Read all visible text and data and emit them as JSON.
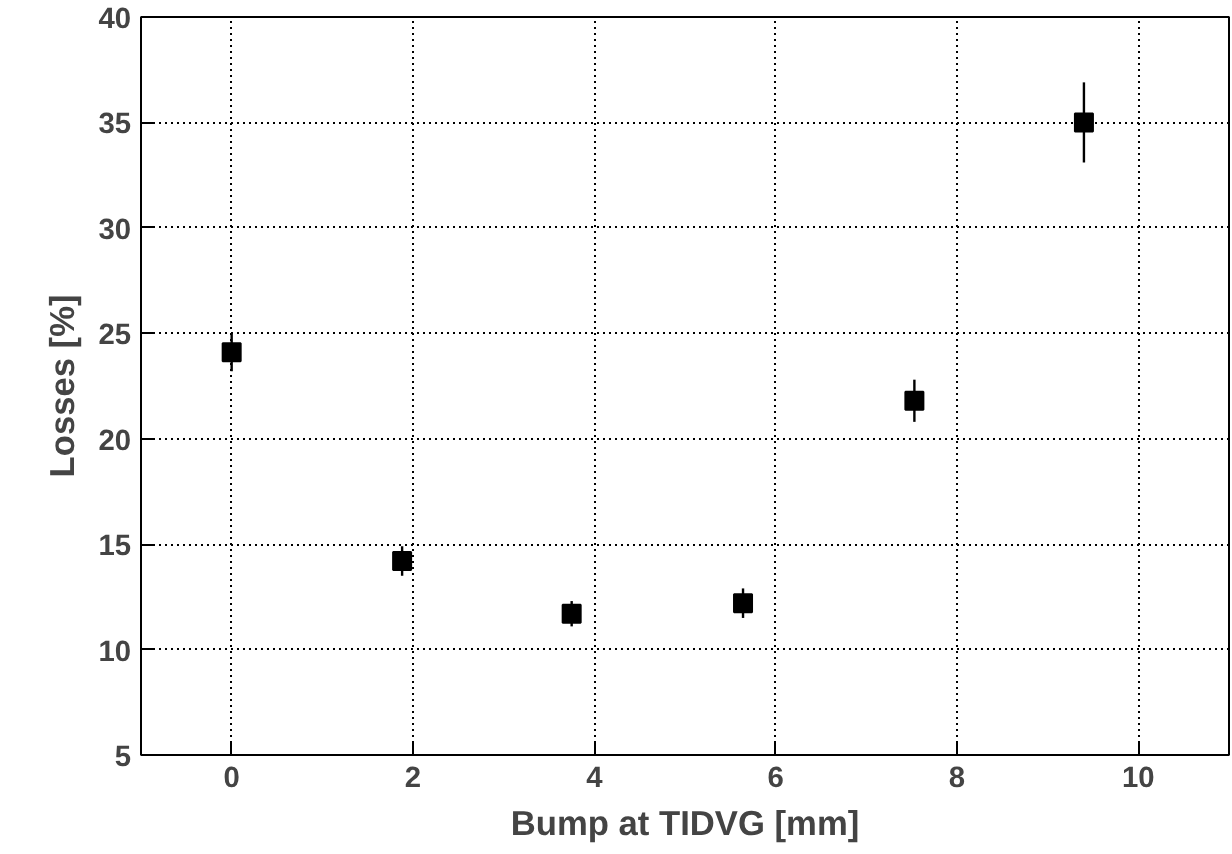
{
  "chart_data": {
    "type": "scatter",
    "xlabel": "Bump at TIDVG [mm]",
    "ylabel": "Losses [%]",
    "x": [
      0,
      1.88,
      3.75,
      5.64,
      7.53,
      9.4
    ],
    "values": [
      24.1,
      14.2,
      11.7,
      12.2,
      21.8,
      35.0
    ],
    "errors": [
      0.9,
      0.7,
      0.6,
      0.7,
      1.0,
      1.9
    ],
    "color": "#000000",
    "marker": "square",
    "xlim": [
      -1,
      11
    ],
    "xticks": [
      0,
      2,
      4,
      6,
      8,
      10
    ],
    "ylim": [
      5,
      40
    ],
    "yticks": [
      5,
      10,
      15,
      20,
      25,
      30,
      35,
      40
    ],
    "grid": true
  }
}
